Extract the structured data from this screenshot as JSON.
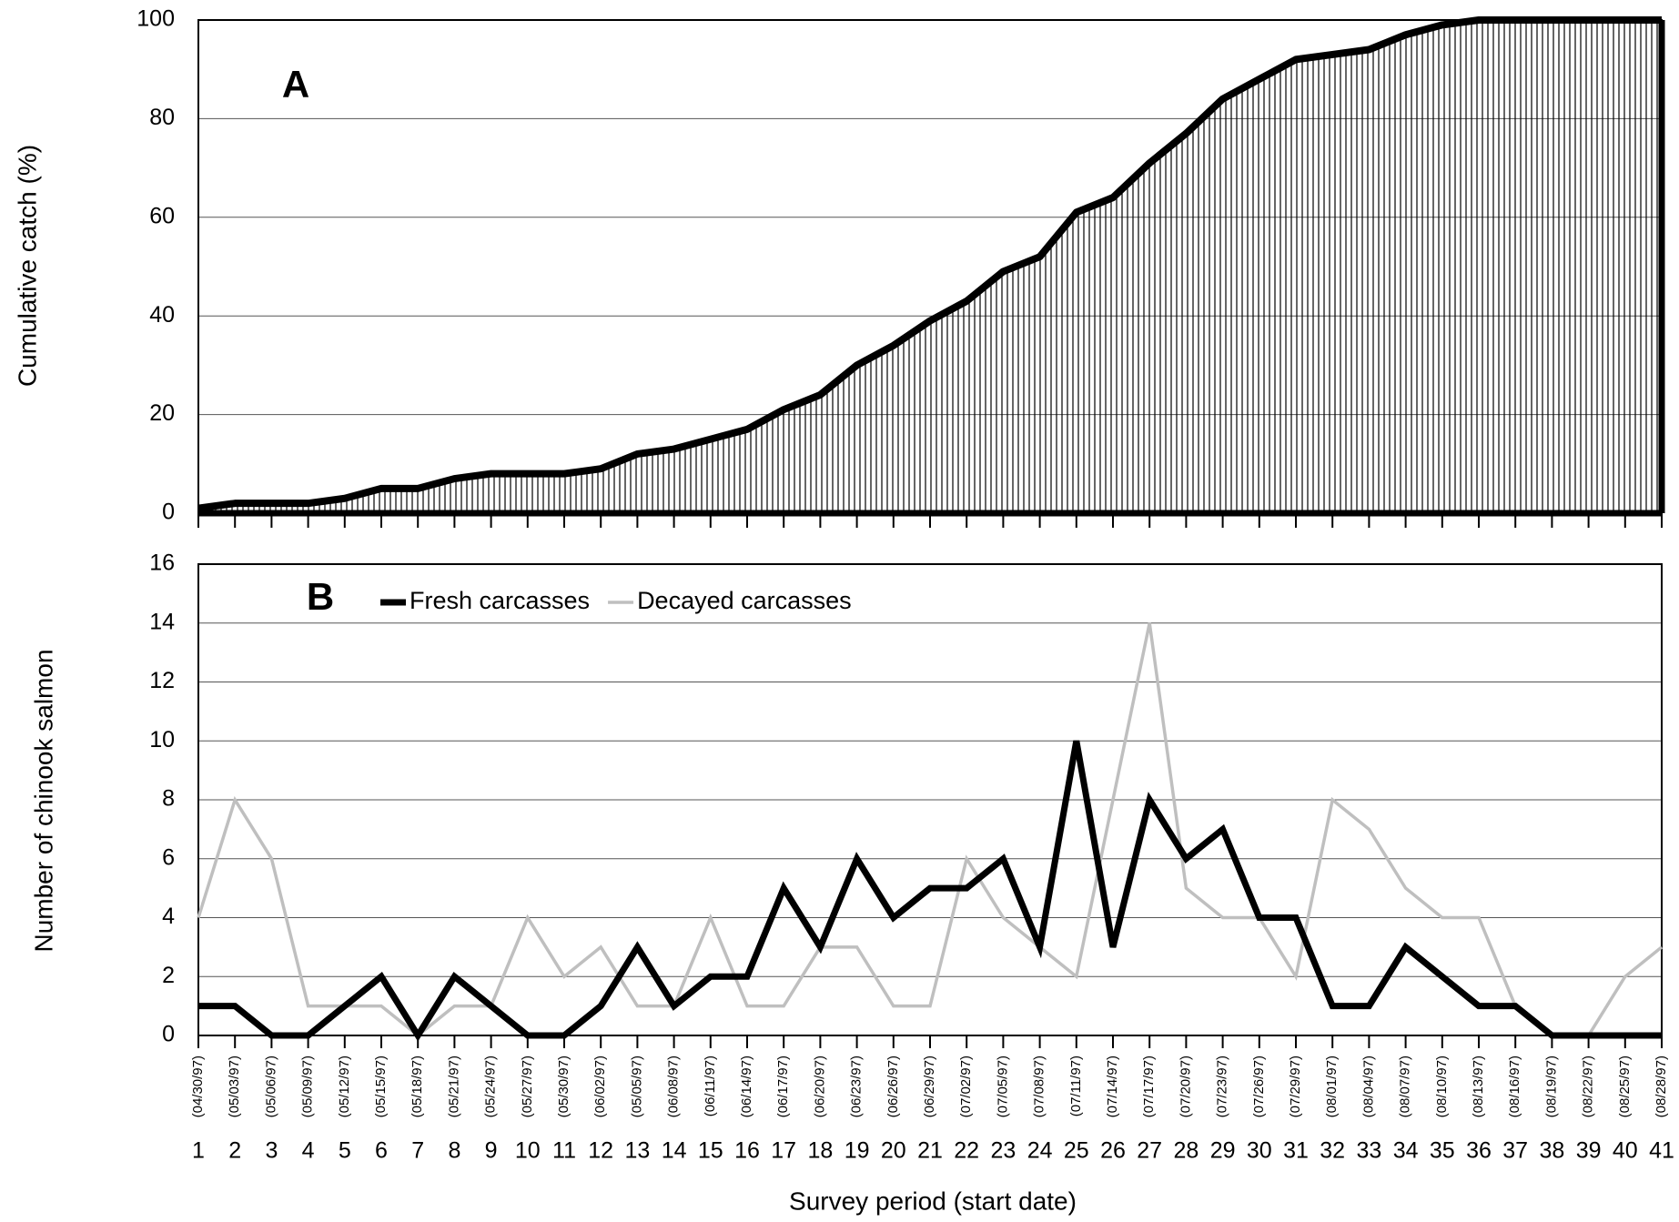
{
  "chart_data": [
    {
      "type": "area",
      "annotation": "A",
      "y_label": "Cumulative catch (%)",
      "values": [
        1,
        2,
        2,
        2,
        3,
        5,
        5,
        7,
        8,
        8,
        8,
        9,
        12,
        13,
        15,
        17,
        21,
        24,
        30,
        34,
        39,
        43,
        49,
        52,
        61,
        64,
        71,
        77,
        84,
        88,
        92,
        93,
        94,
        97,
        99,
        100,
        100,
        100,
        100,
        100,
        100
      ],
      "color": "#000000",
      "ylim": [
        0,
        100
      ],
      "yticks": [
        0,
        20,
        40,
        60,
        80,
        100
      ],
      "grid": true
    },
    {
      "type": "line",
      "annotation": "B",
      "y_label": "Number of chinook salmon",
      "x_label": "Survey period (start date)",
      "categories": [
        "1",
        "2",
        "3",
        "4",
        "5",
        "6",
        "7",
        "8",
        "9",
        "10",
        "11",
        "12",
        "13",
        "14",
        "15",
        "16",
        "17",
        "18",
        "19",
        "20",
        "21",
        "22",
        "23",
        "24",
        "25",
        "26",
        "27",
        "28",
        "29",
        "30",
        "31",
        "32",
        "33",
        "34",
        "35",
        "36",
        "37",
        "38",
        "39",
        "40",
        "41"
      ],
      "date_labels": [
        "(04/30/97)",
        "(05/03/97)",
        "(05/06/97)",
        "(05/09/97)",
        "(05/12/97)",
        "(05/15/97)",
        "(05/18/97)",
        "(05/21/97)",
        "(05/24/97)",
        "(05/27/97)",
        "(05/30/97)",
        "(06/02/97)",
        "(05/05/97)",
        "(06/08/97)",
        "(06/11/97)",
        "(06/14/97)",
        "(06/17/97)",
        "(06/20/97)",
        "(06/23/97)",
        "(06/26/97)",
        "(06/29/97)",
        "(07/02/97)",
        "(07/05/97)",
        "(07/08/97)",
        "(07/11/97)",
        "(07/14/97)",
        "(07/17/97)",
        "(07/20/97)",
        "(07/23/97)",
        "(07/26/97)",
        "(07/29/97)",
        "(08/01/97)",
        "(08/04/97)",
        "(08/07/97)",
        "(08/10/97)",
        "(08/13/97)",
        "(08/16/97)",
        "(08/19/97)",
        "(08/22/97)",
        "(08/25/97)",
        "(08/28/97)"
      ],
      "series": [
        {
          "name": "Fresh carcasses",
          "color": "#000000",
          "values": [
            1,
            1,
            0,
            0,
            1,
            2,
            0,
            2,
            1,
            0,
            0,
            1,
            3,
            1,
            2,
            2,
            5,
            3,
            6,
            4,
            5,
            5,
            6,
            3,
            10,
            3,
            8,
            6,
            7,
            4,
            4,
            1,
            1,
            3,
            2,
            1,
            1,
            0,
            0,
            0,
            0
          ]
        },
        {
          "name": "Decayed carcasses",
          "color": "#bfbfbf",
          "values": [
            4,
            8,
            6,
            1,
            1,
            1,
            0,
            1,
            1,
            4,
            2,
            3,
            1,
            1,
            4,
            1,
            1,
            3,
            3,
            1,
            1,
            6,
            4,
            3,
            2,
            8,
            14,
            5,
            4,
            4,
            2,
            8,
            7,
            5,
            4,
            4,
            1,
            0,
            0,
            2,
            3
          ]
        }
      ],
      "ylim": [
        0,
        16
      ],
      "yticks": [
        0,
        2,
        4,
        6,
        8,
        10,
        12,
        14,
        16
      ],
      "grid": true,
      "legend": "top"
    }
  ]
}
